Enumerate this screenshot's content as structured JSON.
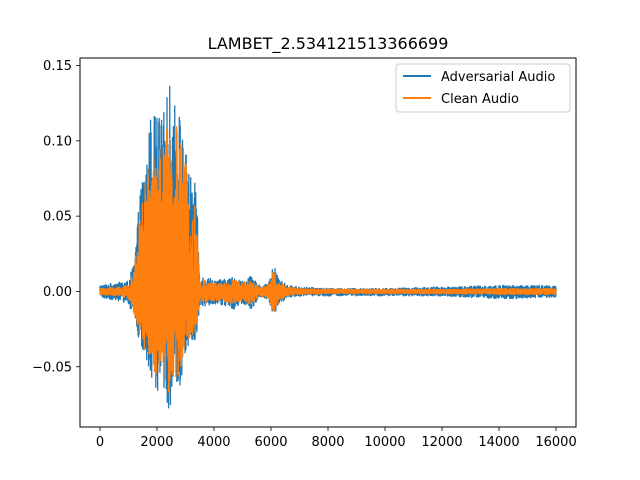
{
  "chart_data": {
    "type": "line",
    "title": "LAMBET_2.534121513366699",
    "xlabel": "",
    "ylabel": "",
    "xlim": [
      -700,
      16700
    ],
    "ylim": [
      -0.09,
      0.155
    ],
    "x_ticks": [
      0,
      2000,
      4000,
      6000,
      8000,
      10000,
      12000,
      14000,
      16000
    ],
    "x_tick_labels": [
      "0",
      "2000",
      "4000",
      "6000",
      "8000",
      "10000",
      "12000",
      "14000",
      "16000"
    ],
    "y_ticks": [
      -0.05,
      0.0,
      0.05,
      0.1,
      0.15
    ],
    "y_tick_labels": [
      "−0.05",
      "0.00",
      "0.05",
      "0.10",
      "0.15"
    ],
    "grid": false,
    "legend_position": "top-right",
    "series": [
      {
        "name": "Adversarial Audio",
        "color": "#1f77b4",
        "x_range": [
          0,
          16000
        ],
        "envelope": {
          "x": [
            0,
            600,
            1000,
            1200,
            1400,
            1600,
            1800,
            2000,
            2200,
            2400,
            2600,
            2800,
            3000,
            3200,
            3400,
            3500,
            3700,
            4000,
            4400,
            4700,
            5000,
            5300,
            5600,
            5900,
            6100,
            6300,
            6600,
            7000,
            8000,
            10000,
            12000,
            14000,
            16000
          ],
          "upper": [
            0.004,
            0.006,
            0.007,
            0.02,
            0.065,
            0.09,
            0.12,
            0.12,
            0.115,
            0.14,
            0.13,
            0.12,
            0.095,
            0.075,
            0.07,
            0.01,
            0.01,
            0.008,
            0.008,
            0.01,
            0.007,
            0.01,
            0.004,
            0.005,
            0.018,
            0.008,
            0.004,
            0.003,
            0.002,
            0.002,
            0.003,
            0.004,
            0.004
          ],
          "lower": [
            -0.004,
            -0.006,
            -0.008,
            -0.02,
            -0.035,
            -0.05,
            -0.06,
            -0.07,
            -0.06,
            -0.078,
            -0.075,
            -0.065,
            -0.04,
            -0.035,
            -0.03,
            -0.01,
            -0.01,
            -0.008,
            -0.01,
            -0.012,
            -0.008,
            -0.012,
            -0.004,
            -0.005,
            -0.018,
            -0.008,
            -0.004,
            -0.003,
            -0.003,
            -0.003,
            -0.003,
            -0.005,
            -0.004
          ]
        }
      },
      {
        "name": "Clean Audio",
        "color": "#ff7f0e",
        "x_range": [
          0,
          16000
        ],
        "envelope": {
          "x": [
            0,
            600,
            1000,
            1200,
            1400,
            1600,
            1800,
            2000,
            2200,
            2400,
            2600,
            2800,
            3000,
            3200,
            3400,
            3500,
            3700,
            4000,
            4400,
            4700,
            5000,
            5300,
            5600,
            5900,
            6100,
            6300,
            6600,
            7000,
            8000,
            10000,
            12000,
            14000,
            16000
          ],
          "upper": [
            0.002,
            0.003,
            0.004,
            0.015,
            0.05,
            0.08,
            0.085,
            0.1,
            0.095,
            0.115,
            0.115,
            0.105,
            0.09,
            0.07,
            0.06,
            0.006,
            0.008,
            0.006,
            0.006,
            0.008,
            0.006,
            0.008,
            0.003,
            0.004,
            0.016,
            0.006,
            0.003,
            0.002,
            0.0015,
            0.0015,
            0.0015,
            0.002,
            0.002
          ],
          "lower": [
            -0.002,
            -0.003,
            -0.005,
            -0.015,
            -0.03,
            -0.04,
            -0.05,
            -0.06,
            -0.05,
            -0.068,
            -0.065,
            -0.055,
            -0.035,
            -0.03,
            -0.025,
            -0.006,
            -0.008,
            -0.006,
            -0.007,
            -0.009,
            -0.006,
            -0.009,
            -0.003,
            -0.004,
            -0.015,
            -0.006,
            -0.003,
            -0.002,
            -0.0015,
            -0.0015,
            -0.0015,
            -0.002,
            -0.002
          ]
        }
      }
    ]
  }
}
